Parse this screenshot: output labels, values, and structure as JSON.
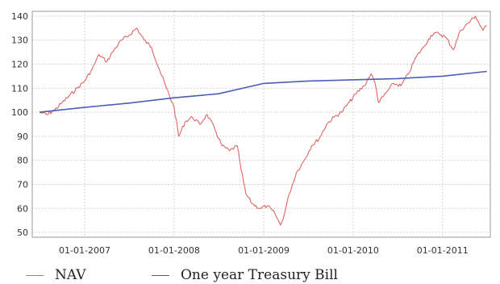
{
  "chart_data": {
    "type": "line",
    "title": "",
    "xlabel": "",
    "ylabel": "",
    "xlim": [
      "2006-06-01",
      "2011-07-15"
    ],
    "ylim": [
      48,
      142
    ],
    "grid": true,
    "legend_position": "bottom",
    "y_ticks": [
      50,
      60,
      70,
      80,
      90,
      100,
      110,
      120,
      130,
      140
    ],
    "x_ticks": [
      "01-01-2007",
      "01-01-2008",
      "01-01-2009",
      "01-01-2010",
      "01-01-2011"
    ],
    "colors": {
      "NAV": "#e06666",
      "treasury": "#4a5fb4"
    },
    "series": [
      {
        "name": "NAV",
        "color": "#e06666",
        "points": [
          [
            "2006-07-01",
            100
          ],
          [
            "2006-08-01",
            99
          ],
          [
            "2006-09-01",
            101
          ],
          [
            "2006-10-01",
            104
          ],
          [
            "2006-11-01",
            107
          ],
          [
            "2006-12-01",
            110
          ],
          [
            "2007-01-01",
            113
          ],
          [
            "2007-02-01",
            118
          ],
          [
            "2007-03-01",
            124
          ],
          [
            "2007-04-01",
            121
          ],
          [
            "2007-05-01",
            126
          ],
          [
            "2007-06-01",
            130
          ],
          [
            "2007-07-01",
            132
          ],
          [
            "2007-08-01",
            135
          ],
          [
            "2007-09-01",
            130
          ],
          [
            "2007-10-01",
            127
          ],
          [
            "2007-11-01",
            118
          ],
          [
            "2007-12-01",
            110
          ],
          [
            "2008-01-01",
            102
          ],
          [
            "2008-01-20",
            90
          ],
          [
            "2008-02-15",
            96
          ],
          [
            "2008-03-15",
            98
          ],
          [
            "2008-04-15",
            95
          ],
          [
            "2008-05-15",
            99
          ],
          [
            "2008-06-15",
            93
          ],
          [
            "2008-07-15",
            86
          ],
          [
            "2008-08-15",
            84
          ],
          [
            "2008-09-15",
            86
          ],
          [
            "2008-10-01",
            76
          ],
          [
            "2008-10-20",
            66
          ],
          [
            "2008-11-15",
            62
          ],
          [
            "2008-12-15",
            60
          ],
          [
            "2009-01-15",
            61
          ],
          [
            "2009-02-15",
            58
          ],
          [
            "2009-03-10",
            53
          ],
          [
            "2009-03-25",
            57
          ],
          [
            "2009-04-15",
            66
          ],
          [
            "2009-05-15",
            75
          ],
          [
            "2009-06-15",
            80
          ],
          [
            "2009-07-15",
            86
          ],
          [
            "2009-08-15",
            89
          ],
          [
            "2009-09-15",
            95
          ],
          [
            "2009-10-15",
            98
          ],
          [
            "2009-11-15",
            100
          ],
          [
            "2009-12-15",
            104
          ],
          [
            "2010-01-15",
            108
          ],
          [
            "2010-02-15",
            111
          ],
          [
            "2010-03-15",
            116
          ],
          [
            "2010-04-01",
            112
          ],
          [
            "2010-04-15",
            104
          ],
          [
            "2010-05-15",
            108
          ],
          [
            "2010-06-15",
            112
          ],
          [
            "2010-07-15",
            111
          ],
          [
            "2010-08-15",
            116
          ],
          [
            "2010-09-15",
            123
          ],
          [
            "2010-10-15",
            127
          ],
          [
            "2010-11-15",
            132
          ],
          [
            "2010-12-15",
            133
          ],
          [
            "2011-01-15",
            131
          ],
          [
            "2011-02-15",
            126
          ],
          [
            "2011-03-15",
            134
          ],
          [
            "2011-04-15",
            137
          ],
          [
            "2011-05-15",
            140
          ],
          [
            "2011-06-15",
            134
          ],
          [
            "2011-07-01",
            136
          ]
        ]
      },
      {
        "name": "One year Treasury Bill",
        "color": "#4a5fb4",
        "points": [
          [
            "2006-07-01",
            100
          ],
          [
            "2007-01-01",
            102
          ],
          [
            "2007-07-01",
            103.8
          ],
          [
            "2008-01-01",
            106
          ],
          [
            "2008-07-01",
            107.7
          ],
          [
            "2009-01-01",
            112
          ],
          [
            "2009-07-01",
            113
          ],
          [
            "2010-01-01",
            113.5
          ],
          [
            "2010-07-01",
            114
          ],
          [
            "2011-01-01",
            115
          ],
          [
            "2011-07-01",
            117
          ]
        ]
      }
    ]
  }
}
